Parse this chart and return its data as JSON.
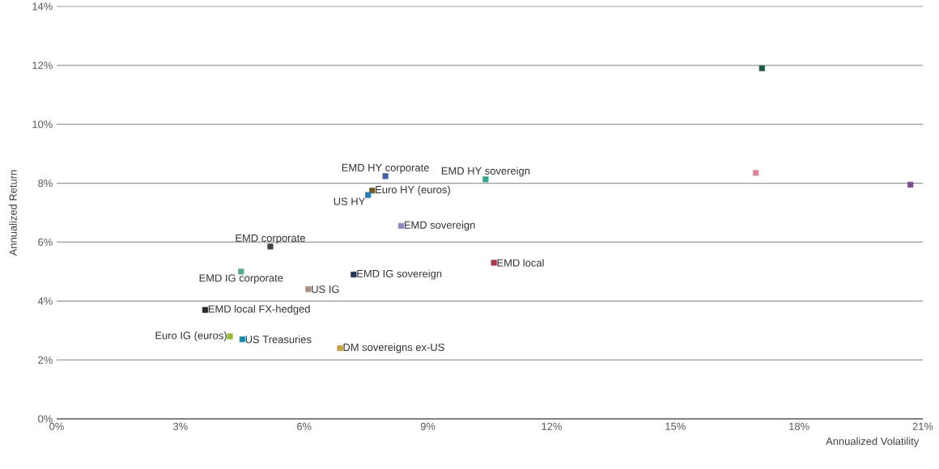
{
  "chart_data": {
    "type": "scatter",
    "xlabel": "Annualized Volatility",
    "ylabel": "Annualized Return",
    "xlim": [
      0,
      21
    ],
    "ylim": [
      0,
      14
    ],
    "xticks": [
      {
        "value": 0,
        "label": "0%"
      },
      {
        "value": 3,
        "label": "3%"
      },
      {
        "value": 6,
        "label": "6%"
      },
      {
        "value": 9,
        "label": "9%"
      },
      {
        "value": 12,
        "label": "12%"
      },
      {
        "value": 15,
        "label": "15%"
      },
      {
        "value": 18,
        "label": "18%"
      },
      {
        "value": 21,
        "label": "21%"
      }
    ],
    "yticks": [
      {
        "value": 0,
        "label": "0%"
      },
      {
        "value": 2,
        "label": "2%"
      },
      {
        "value": 4,
        "label": "4%"
      },
      {
        "value": 6,
        "label": "6%"
      },
      {
        "value": 8,
        "label": "8%"
      },
      {
        "value": 10,
        "label": "10%"
      },
      {
        "value": 12,
        "label": "12%"
      },
      {
        "value": 14,
        "label": "14%"
      }
    ],
    "grid": "y",
    "marker": "square",
    "series": [
      {
        "color": "#1f5a45",
        "x": [
          17.1
        ],
        "values": [
          11.9
        ]
      },
      {
        "color": "#d98a9a",
        "x": [
          16.95
        ],
        "values": [
          8.35
        ]
      },
      {
        "color": "#7d4a93",
        "x": [
          20.7
        ],
        "values": [
          7.95
        ]
      },
      {
        "name": "EMD HY corporate",
        "color": "#4a62a8",
        "x": [
          7.97
        ],
        "values": [
          8.24
        ]
      },
      {
        "name": "EMD HY sovereign",
        "color": "#3aa390",
        "x": [
          10.4
        ],
        "values": [
          8.13
        ]
      },
      {
        "name": "Euro HY (euros)",
        "color": "#6b5a2a",
        "x": [
          7.65
        ],
        "values": [
          7.75
        ]
      },
      {
        "name": "US HY",
        "color": "#1f7fb8",
        "x": [
          7.55
        ],
        "values": [
          7.6
        ]
      },
      {
        "name": "EMD sovereign",
        "color": "#8c86c4",
        "x": [
          8.35
        ],
        "values": [
          6.55
        ]
      },
      {
        "name": "EMD corporate",
        "color": "#444444",
        "x": [
          5.18
        ],
        "values": [
          5.85
        ]
      },
      {
        "name": "EMD local",
        "color": "#b33a4e",
        "x": [
          10.6
        ],
        "values": [
          5.3
        ]
      },
      {
        "name": "EMD IG corporate",
        "color": "#5aa88a",
        "x": [
          4.47
        ],
        "values": [
          5.0
        ]
      },
      {
        "name": "EMD IG sovereign",
        "color": "#263656",
        "x": [
          7.2
        ],
        "values": [
          4.9
        ]
      },
      {
        "name": "US IG",
        "color": "#a89080",
        "x": [
          6.1
        ],
        "values": [
          4.4
        ]
      },
      {
        "name": "EMD local FX-hedged",
        "color": "#2a2a2a",
        "x": [
          3.6
        ],
        "values": [
          3.7
        ]
      },
      {
        "name": "Euro IG (euros)",
        "color": "#9ab83a",
        "x": [
          4.2
        ],
        "values": [
          2.8
        ]
      },
      {
        "name": "US Treasuries",
        "color": "#1a8aa8",
        "x": [
          4.5
        ],
        "values": [
          2.7
        ]
      },
      {
        "name": "DM sovereigns ex-US",
        "color": "#c9a040",
        "x": [
          6.87
        ],
        "values": [
          2.4
        ]
      }
    ]
  }
}
